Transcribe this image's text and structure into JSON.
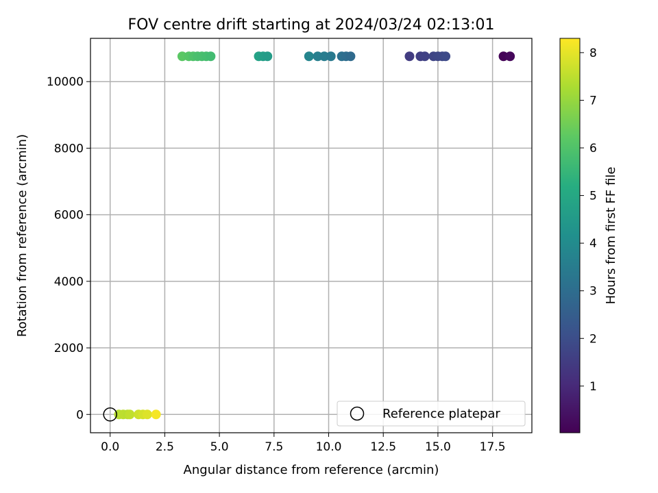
{
  "chart_data": {
    "type": "scatter",
    "title": "FOV centre drift starting at 2024/03/24 02:13:01",
    "xlabel": "Angular distance from reference (arcmin)",
    "ylabel": "Rotation from reference (arcmin)",
    "xlim": [
      -0.9,
      19.3
    ],
    "ylim": [
      -550,
      11300
    ],
    "xticks": [
      0.0,
      2.5,
      5.0,
      7.5,
      10.0,
      12.5,
      15.0,
      17.5
    ],
    "xtick_labels": [
      "0.0",
      "2.5",
      "5.0",
      "7.5",
      "10.0",
      "12.5",
      "15.0",
      "17.5"
    ],
    "yticks": [
      0,
      2000,
      4000,
      6000,
      8000,
      10000
    ],
    "ytick_labels": [
      "0",
      "2000",
      "4000",
      "6000",
      "8000",
      "10000"
    ],
    "grid": true,
    "colormap": "viridis",
    "colorbar": {
      "label": "Hours from first FF file",
      "min": 0.02,
      "max": 8.3,
      "ticks": [
        1,
        2,
        3,
        4,
        5,
        6,
        7,
        8
      ],
      "tick_labels": [
        "1",
        "2",
        "3",
        "4",
        "5",
        "6",
        "7",
        "8"
      ]
    },
    "legend": {
      "position": "lower-right",
      "label": "Reference platepar"
    },
    "reference_point": {
      "x": 0.0,
      "y": 0
    },
    "series": [
      {
        "points": [
          {
            "x": 18.0,
            "y": 10760,
            "t": 0.1
          },
          {
            "x": 18.3,
            "y": 10760,
            "t": 0.2
          },
          {
            "x": 13.7,
            "y": 10760,
            "t": 1.5
          },
          {
            "x": 14.2,
            "y": 10760,
            "t": 1.6
          },
          {
            "x": 14.4,
            "y": 10760,
            "t": 1.65
          },
          {
            "x": 14.8,
            "y": 10760,
            "t": 1.75
          },
          {
            "x": 15.0,
            "y": 10760,
            "t": 1.8
          },
          {
            "x": 15.2,
            "y": 10760,
            "t": 1.85
          },
          {
            "x": 15.35,
            "y": 10760,
            "t": 1.9
          },
          {
            "x": 10.6,
            "y": 10760,
            "t": 3.1
          },
          {
            "x": 10.8,
            "y": 10760,
            "t": 3.0
          },
          {
            "x": 11.0,
            "y": 10760,
            "t": 2.9
          },
          {
            "x": 9.1,
            "y": 10760,
            "t": 3.8
          },
          {
            "x": 9.5,
            "y": 10760,
            "t": 3.6
          },
          {
            "x": 9.8,
            "y": 10760,
            "t": 3.5
          },
          {
            "x": 10.1,
            "y": 10760,
            "t": 3.4
          },
          {
            "x": 6.8,
            "y": 10760,
            "t": 4.8
          },
          {
            "x": 7.0,
            "y": 10760,
            "t": 4.7
          },
          {
            "x": 7.2,
            "y": 10760,
            "t": 4.6
          },
          {
            "x": 3.3,
            "y": 10760,
            "t": 6.2
          },
          {
            "x": 3.6,
            "y": 10760,
            "t": 6.1
          },
          {
            "x": 3.8,
            "y": 10760,
            "t": 6.0
          },
          {
            "x": 4.0,
            "y": 10760,
            "t": 5.9
          },
          {
            "x": 4.2,
            "y": 10760,
            "t": 5.85
          },
          {
            "x": 4.4,
            "y": 10760,
            "t": 5.8
          },
          {
            "x": 4.6,
            "y": 10760,
            "t": 5.75
          },
          {
            "x": 0.4,
            "y": 0,
            "t": 7.4
          },
          {
            "x": 0.6,
            "y": 0,
            "t": 7.5
          },
          {
            "x": 0.8,
            "y": 0,
            "t": 7.45
          },
          {
            "x": 0.9,
            "y": 0,
            "t": 7.55
          },
          {
            "x": 1.3,
            "y": 0,
            "t": 7.7
          },
          {
            "x": 1.5,
            "y": 0,
            "t": 7.8
          },
          {
            "x": 1.7,
            "y": 0,
            "t": 7.9
          },
          {
            "x": 2.1,
            "y": 0,
            "t": 8.2
          }
        ]
      }
    ]
  }
}
